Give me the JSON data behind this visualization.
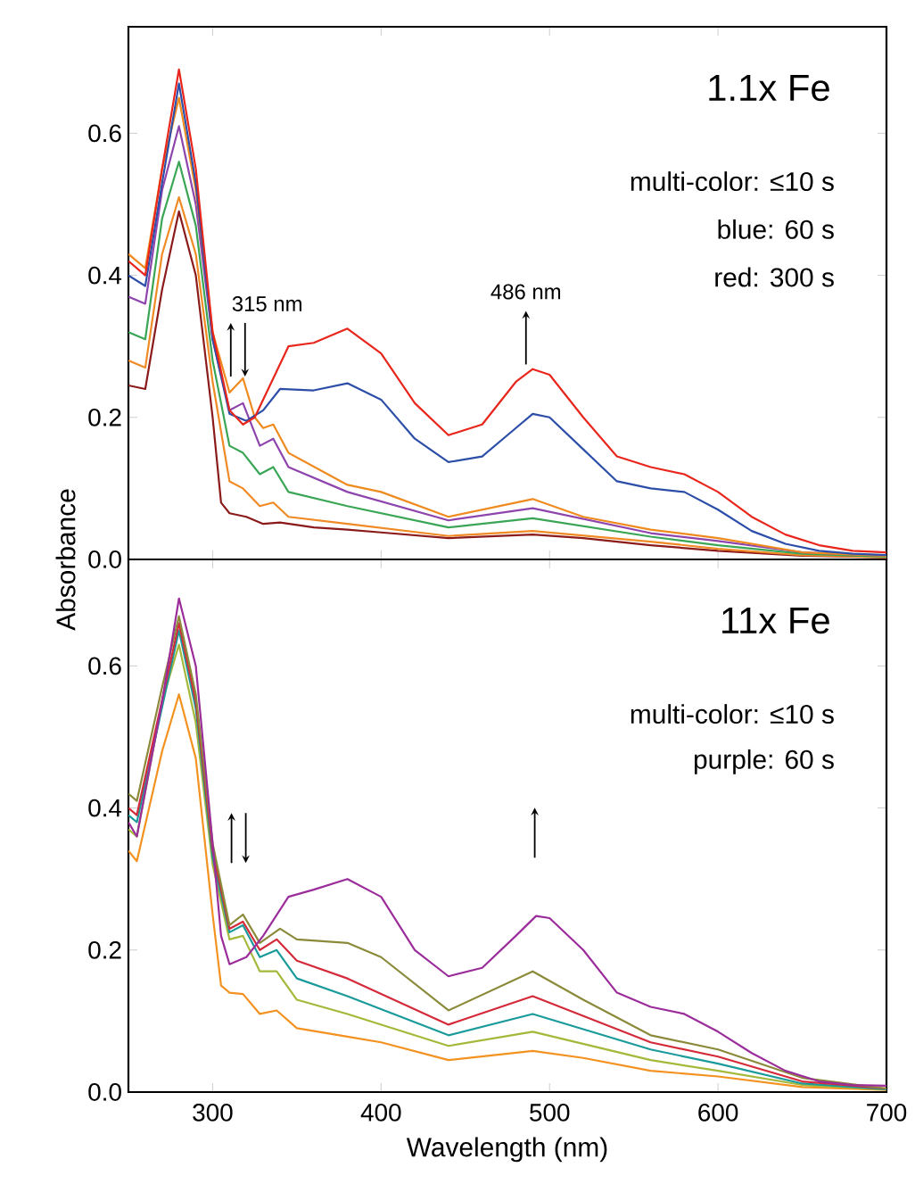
{
  "chart_data": [
    {
      "type": "line",
      "ylabel": "Absorbance",
      "xlim": [
        250,
        700
      ],
      "ylim": [
        0,
        0.75
      ],
      "xticks": [
        {
          "value": 300,
          "label": null
        },
        {
          "value": 400,
          "label": null
        },
        {
          "value": 500,
          "label": null
        },
        {
          "value": 600,
          "label": null
        },
        {
          "value": 700,
          "label": null
        }
      ],
      "yticks": [
        {
          "value": 0,
          "label": "0.0"
        },
        0.2,
        0.4,
        0.6
      ],
      "tick_labels": "y",
      "annotations": [
        "1.1x Fe",
        "multi-color: ≤10 s",
        "blue: 60 s",
        "red: 300 s",
        {
          "text": "315 nm",
          "x": 315,
          "y": 0.25
        },
        {
          "text": "486 nm",
          "x": 486,
          "y": 0.267
        }
      ],
      "series": [
        {
          "color": "#8b1a1a",
          "x": [
            250,
            260,
            270,
            280,
            290,
            300,
            305,
            310,
            320,
            330,
            340,
            360,
            380,
            400,
            440,
            490,
            520,
            560,
            600,
            650,
            700
          ],
          "values": [
            0.245,
            0.24,
            0.38,
            0.49,
            0.4,
            0.2,
            0.08,
            0.065,
            0.06,
            0.05,
            0.052,
            0.045,
            0.042,
            0.038,
            0.03,
            0.035,
            0.03,
            0.02,
            0.012,
            0.005,
            0.003
          ]
        },
        {
          "color": "#f08a24",
          "x": [
            250,
            260,
            270,
            280,
            290,
            300,
            310,
            318,
            328,
            336,
            345,
            380,
            440,
            490,
            560,
            600,
            650,
            700
          ],
          "values": [
            0.28,
            0.27,
            0.43,
            0.51,
            0.43,
            0.25,
            0.11,
            0.1,
            0.075,
            0.08,
            0.06,
            0.05,
            0.033,
            0.04,
            0.025,
            0.015,
            0.006,
            0.003
          ]
        },
        {
          "color": "#3aa655",
          "x": [
            250,
            260,
            270,
            280,
            290,
            300,
            310,
            318,
            328,
            336,
            345,
            380,
            440,
            490,
            560,
            600,
            650,
            700
          ],
          "values": [
            0.32,
            0.31,
            0.48,
            0.56,
            0.47,
            0.28,
            0.16,
            0.15,
            0.12,
            0.13,
            0.095,
            0.075,
            0.045,
            0.058,
            0.032,
            0.02,
            0.008,
            0.004
          ]
        },
        {
          "color": "#8e44ad",
          "x": [
            250,
            260,
            270,
            280,
            290,
            300,
            310,
            318,
            328,
            336,
            345,
            380,
            440,
            490,
            560,
            600,
            650,
            700
          ],
          "values": [
            0.37,
            0.36,
            0.52,
            0.61,
            0.5,
            0.31,
            0.21,
            0.22,
            0.16,
            0.17,
            0.13,
            0.095,
            0.055,
            0.072,
            0.037,
            0.026,
            0.01,
            0.005
          ]
        },
        {
          "color": "#ee8a1e",
          "x": [
            250,
            260,
            270,
            280,
            290,
            300,
            310,
            318,
            325,
            330,
            336,
            345,
            380,
            400,
            440,
            490,
            520,
            560,
            600,
            650,
            700
          ],
          "values": [
            0.43,
            0.41,
            0.55,
            0.65,
            0.52,
            0.32,
            0.235,
            0.255,
            0.2,
            0.185,
            0.19,
            0.15,
            0.105,
            0.095,
            0.06,
            0.085,
            0.06,
            0.042,
            0.03,
            0.01,
            0.005
          ]
        },
        {
          "color": "#2c4ea8",
          "x": [
            250,
            260,
            270,
            280,
            290,
            300,
            310,
            320,
            330,
            340,
            360,
            380,
            400,
            420,
            440,
            460,
            480,
            490,
            500,
            520,
            540,
            560,
            580,
            600,
            620,
            640,
            660,
            680,
            700
          ],
          "values": [
            0.4,
            0.385,
            0.53,
            0.67,
            0.53,
            0.31,
            0.205,
            0.195,
            0.21,
            0.24,
            0.238,
            0.248,
            0.225,
            0.17,
            0.137,
            0.145,
            0.185,
            0.205,
            0.2,
            0.155,
            0.11,
            0.1,
            0.095,
            0.07,
            0.04,
            0.022,
            0.012,
            0.008,
            0.006
          ]
        },
        {
          "color": "#e8261c",
          "x": [
            250,
            260,
            270,
            280,
            290,
            300,
            310,
            318,
            325,
            335,
            345,
            360,
            380,
            400,
            420,
            440,
            460,
            480,
            490,
            500,
            520,
            540,
            560,
            580,
            600,
            620,
            640,
            660,
            680,
            700
          ],
          "values": [
            0.42,
            0.4,
            0.55,
            0.69,
            0.55,
            0.32,
            0.21,
            0.19,
            0.2,
            0.25,
            0.3,
            0.305,
            0.325,
            0.29,
            0.22,
            0.175,
            0.19,
            0.25,
            0.268,
            0.26,
            0.2,
            0.145,
            0.13,
            0.12,
            0.095,
            0.06,
            0.035,
            0.02,
            0.012,
            0.01
          ]
        }
      ]
    },
    {
      "type": "line",
      "xlabel": "Wavelength (nm)",
      "xlim": [
        250,
        700
      ],
      "ylim": [
        0,
        0.75
      ],
      "xticks": [
        300,
        400,
        500,
        600,
        700
      ],
      "yticks": [
        {
          "value": 0,
          "label": "0.0"
        },
        0.2,
        0.4,
        0.6
      ],
      "annotations": [
        "11x Fe",
        "multi-color: ≤10 s",
        "purple: 60 s"
      ],
      "series": [
        {
          "color": "#f39220",
          "x": [
            250,
            255,
            270,
            280,
            290,
            300,
            305,
            310,
            318,
            328,
            338,
            350,
            380,
            400,
            440,
            490,
            520,
            560,
            600,
            650,
            700
          ],
          "values": [
            0.34,
            0.325,
            0.48,
            0.56,
            0.47,
            0.25,
            0.15,
            0.14,
            0.138,
            0.11,
            0.115,
            0.09,
            0.078,
            0.07,
            0.045,
            0.058,
            0.048,
            0.03,
            0.022,
            0.007,
            0.003
          ]
        },
        {
          "color": "#a5b83a",
          "x": [
            250,
            255,
            270,
            280,
            290,
            300,
            310,
            318,
            328,
            338,
            350,
            380,
            440,
            490,
            560,
            600,
            650,
            700
          ],
          "values": [
            0.37,
            0.36,
            0.55,
            0.63,
            0.52,
            0.32,
            0.215,
            0.22,
            0.17,
            0.17,
            0.13,
            0.11,
            0.065,
            0.085,
            0.045,
            0.03,
            0.01,
            0.004
          ]
        },
        {
          "color": "#1a9a9a",
          "x": [
            250,
            255,
            280,
            290,
            300,
            310,
            318,
            328,
            338,
            350,
            380,
            440,
            490,
            560,
            600,
            650,
            700
          ],
          "values": [
            0.39,
            0.38,
            0.65,
            0.54,
            0.33,
            0.225,
            0.235,
            0.19,
            0.2,
            0.16,
            0.135,
            0.08,
            0.11,
            0.06,
            0.04,
            0.012,
            0.004
          ]
        },
        {
          "color": "#d42a3a",
          "x": [
            250,
            255,
            280,
            290,
            300,
            310,
            318,
            328,
            338,
            350,
            380,
            440,
            490,
            560,
            600,
            650,
            700
          ],
          "values": [
            0.4,
            0.39,
            0.66,
            0.55,
            0.34,
            0.23,
            0.24,
            0.2,
            0.215,
            0.185,
            0.16,
            0.095,
            0.135,
            0.07,
            0.05,
            0.015,
            0.005
          ]
        },
        {
          "color": "#8a8a3a",
          "x": [
            250,
            255,
            270,
            280,
            290,
            300,
            310,
            318,
            328,
            340,
            350,
            380,
            400,
            440,
            490,
            520,
            560,
            600,
            650,
            700
          ],
          "values": [
            0.42,
            0.41,
            0.57,
            0.67,
            0.56,
            0.35,
            0.235,
            0.25,
            0.21,
            0.23,
            0.215,
            0.21,
            0.19,
            0.115,
            0.17,
            0.13,
            0.08,
            0.06,
            0.02,
            0.005
          ]
        },
        {
          "color": "#9b2d9b",
          "x": [
            250,
            255,
            270,
            280,
            290,
            300,
            305,
            310,
            320,
            330,
            345,
            360,
            380,
            400,
            420,
            440,
            460,
            480,
            492,
            500,
            520,
            540,
            560,
            580,
            600,
            620,
            640,
            660,
            680,
            700
          ],
          "values": [
            0.38,
            0.36,
            0.55,
            0.695,
            0.6,
            0.35,
            0.22,
            0.18,
            0.19,
            0.22,
            0.275,
            0.285,
            0.3,
            0.275,
            0.2,
            0.163,
            0.175,
            0.22,
            0.248,
            0.245,
            0.2,
            0.14,
            0.12,
            0.11,
            0.085,
            0.055,
            0.03,
            0.015,
            0.01,
            0.009
          ]
        }
      ]
    }
  ]
}
